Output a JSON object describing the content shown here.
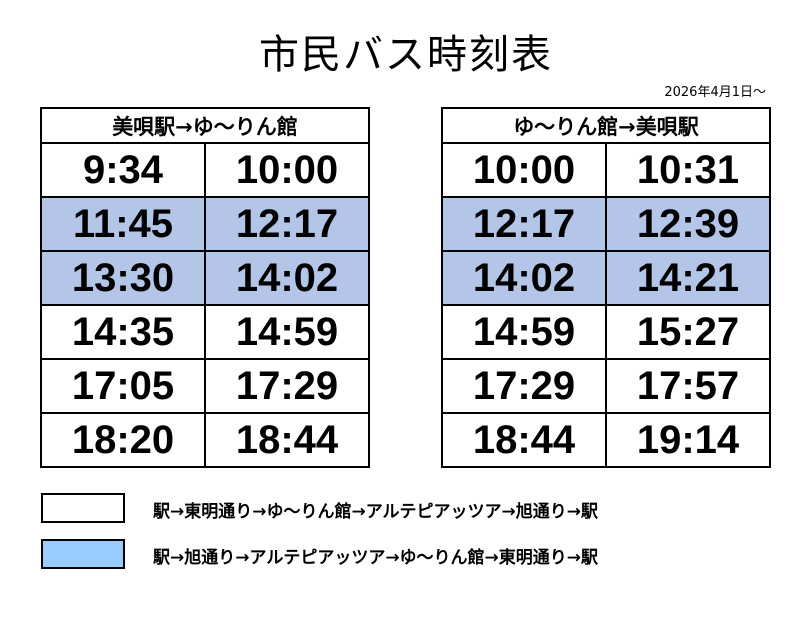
{
  "title": "市民バス時刻表",
  "effective_date": "2026年4月1日～",
  "tables": [
    {
      "header": "美唄駅→ゆ～りん館",
      "rows": [
        [
          "9:34",
          "10:00"
        ],
        [
          "11:45",
          "12:17"
        ],
        [
          "13:30",
          "14:02"
        ],
        [
          "14:35",
          "14:59"
        ],
        [
          "17:05",
          "17:29"
        ],
        [
          "18:20",
          "18:44"
        ]
      ]
    },
    {
      "header": "ゆ～りん館→美唄駅",
      "rows": [
        [
          "10:00",
          "10:31"
        ],
        [
          "12:17",
          "12:39"
        ],
        [
          "14:02",
          "14:21"
        ],
        [
          "14:59",
          "15:27"
        ],
        [
          "17:29",
          "17:57"
        ],
        [
          "18:44",
          "19:14"
        ]
      ]
    }
  ],
  "legend": [
    "駅→東明通り→ゆ～りん館→アルテピアッツア→旭通り→駅",
    "駅→旭通り→アルテピアッツア→ゆ～りん館→東明通り→駅"
  ]
}
